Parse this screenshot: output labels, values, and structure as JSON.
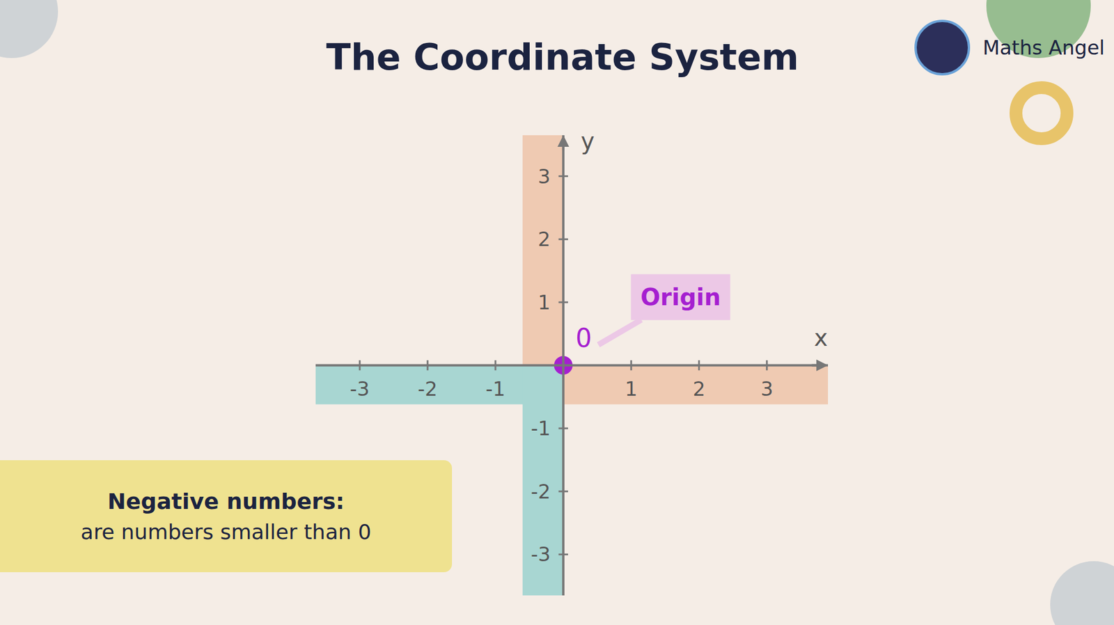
{
  "chart_data": {
    "type": "scatter",
    "title": "The Coordinate System",
    "x_label": "x",
    "y_label": "y",
    "x": [
      0
    ],
    "values": [
      0
    ],
    "value_labels": [
      "0"
    ],
    "data_labels": true,
    "color": "#a51fd0",
    "xlim": [
      -3.65,
      3.9
    ],
    "ylim": [
      -3.65,
      3.65
    ],
    "xticks": [
      -3,
      -2,
      -1,
      1,
      2,
      3
    ],
    "yticks": [
      -3,
      -2,
      -1,
      1,
      2,
      3
    ],
    "grid": false,
    "annotations": [
      {
        "text": "Origin",
        "x": 0,
        "y": 0
      }
    ]
  },
  "brand": "Maths Angel",
  "note": {
    "title": "Negative numbers:",
    "text": "are numbers smaller than 0"
  }
}
